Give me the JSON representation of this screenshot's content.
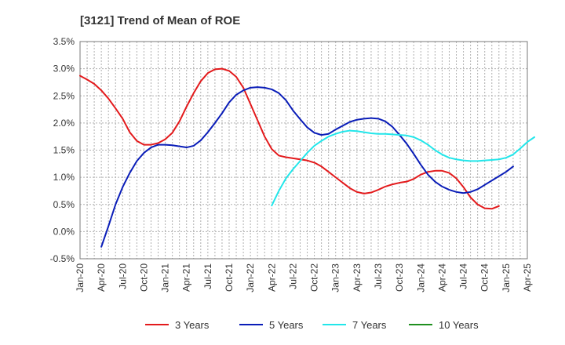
{
  "chart_data": {
    "type": "line",
    "title": "[3121]  Trend of Mean of ROE",
    "xlabel": "",
    "ylabel": "",
    "ylim": [
      -0.5,
      3.5
    ],
    "yticks": [
      -0.5,
      0.0,
      0.5,
      1.0,
      1.5,
      2.0,
      2.5,
      3.0,
      3.5
    ],
    "ytick_labels": [
      "-0.5%",
      "0.0%",
      "0.5%",
      "1.0%",
      "1.5%",
      "2.0%",
      "2.5%",
      "3.0%",
      "3.5%"
    ],
    "xticks": [
      "Jan-20",
      "Apr-20",
      "Jul-20",
      "Oct-20",
      "Jan-21",
      "Apr-21",
      "Jul-21",
      "Oct-21",
      "Jan-22",
      "Apr-22",
      "Jul-22",
      "Oct-22",
      "Jan-23",
      "Apr-23",
      "Jul-23",
      "Oct-23",
      "Jan-24",
      "Apr-24",
      "Jul-24",
      "Oct-24",
      "Jan-25",
      "Apr-25"
    ],
    "grid": true,
    "legend_position": "bottom",
    "series": [
      {
        "name": "3 Years",
        "color": "#e31a1c",
        "points": [
          [
            0,
            2.87
          ],
          [
            1,
            2.8
          ],
          [
            2,
            2.72
          ],
          [
            3,
            2.6
          ],
          [
            4,
            2.45
          ],
          [
            5,
            2.27
          ],
          [
            6,
            2.08
          ],
          [
            7,
            1.83
          ],
          [
            8,
            1.67
          ],
          [
            9,
            1.6
          ],
          [
            10,
            1.6
          ],
          [
            11,
            1.63
          ],
          [
            12,
            1.7
          ],
          [
            13,
            1.82
          ],
          [
            14,
            2.03
          ],
          [
            15,
            2.3
          ],
          [
            16,
            2.55
          ],
          [
            17,
            2.77
          ],
          [
            18,
            2.92
          ],
          [
            19,
            2.99
          ],
          [
            20,
            3.0
          ],
          [
            21,
            2.96
          ],
          [
            22,
            2.85
          ],
          [
            23,
            2.65
          ],
          [
            24,
            2.35
          ],
          [
            25,
            2.05
          ],
          [
            26,
            1.75
          ],
          [
            27,
            1.52
          ],
          [
            28,
            1.4
          ],
          [
            29,
            1.37
          ],
          [
            30,
            1.35
          ],
          [
            31,
            1.33
          ],
          [
            32,
            1.31
          ],
          [
            33,
            1.27
          ],
          [
            34,
            1.2
          ],
          [
            35,
            1.1
          ],
          [
            36,
            1.0
          ],
          [
            37,
            0.9
          ],
          [
            38,
            0.8
          ],
          [
            39,
            0.73
          ],
          [
            40,
            0.7
          ],
          [
            41,
            0.72
          ],
          [
            42,
            0.77
          ],
          [
            43,
            0.83
          ],
          [
            44,
            0.87
          ],
          [
            45,
            0.9
          ],
          [
            46,
            0.92
          ],
          [
            47,
            0.97
          ],
          [
            48,
            1.05
          ],
          [
            49,
            1.1
          ],
          [
            50,
            1.12
          ],
          [
            51,
            1.12
          ],
          [
            52,
            1.08
          ],
          [
            53,
            0.98
          ],
          [
            54,
            0.82
          ],
          [
            55,
            0.63
          ],
          [
            56,
            0.5
          ],
          [
            57,
            0.43
          ],
          [
            58,
            0.42
          ],
          [
            59,
            0.47
          ]
        ]
      },
      {
        "name": "5 Years",
        "color": "#0a1db8",
        "points": [
          [
            3,
            -0.28
          ],
          [
            4,
            0.1
          ],
          [
            5,
            0.5
          ],
          [
            6,
            0.82
          ],
          [
            7,
            1.08
          ],
          [
            8,
            1.3
          ],
          [
            9,
            1.45
          ],
          [
            10,
            1.55
          ],
          [
            11,
            1.6
          ],
          [
            12,
            1.6
          ],
          [
            13,
            1.59
          ],
          [
            14,
            1.57
          ],
          [
            15,
            1.55
          ],
          [
            16,
            1.58
          ],
          [
            17,
            1.68
          ],
          [
            18,
            1.83
          ],
          [
            19,
            2.0
          ],
          [
            20,
            2.18
          ],
          [
            21,
            2.38
          ],
          [
            22,
            2.52
          ],
          [
            23,
            2.6
          ],
          [
            24,
            2.65
          ],
          [
            25,
            2.66
          ],
          [
            26,
            2.65
          ],
          [
            27,
            2.62
          ],
          [
            28,
            2.55
          ],
          [
            29,
            2.42
          ],
          [
            30,
            2.23
          ],
          [
            31,
            2.07
          ],
          [
            32,
            1.92
          ],
          [
            33,
            1.82
          ],
          [
            34,
            1.78
          ],
          [
            35,
            1.8
          ],
          [
            36,
            1.88
          ],
          [
            37,
            1.95
          ],
          [
            38,
            2.02
          ],
          [
            39,
            2.06
          ],
          [
            40,
            2.08
          ],
          [
            41,
            2.09
          ],
          [
            42,
            2.08
          ],
          [
            43,
            2.03
          ],
          [
            44,
            1.93
          ],
          [
            45,
            1.78
          ],
          [
            46,
            1.62
          ],
          [
            47,
            1.43
          ],
          [
            48,
            1.23
          ],
          [
            49,
            1.05
          ],
          [
            50,
            0.92
          ],
          [
            51,
            0.83
          ],
          [
            52,
            0.77
          ],
          [
            53,
            0.73
          ],
          [
            54,
            0.71
          ],
          [
            55,
            0.73
          ],
          [
            56,
            0.78
          ],
          [
            57,
            0.86
          ],
          [
            58,
            0.94
          ],
          [
            59,
            1.02
          ],
          [
            60,
            1.1
          ],
          [
            61,
            1.2
          ]
        ]
      },
      {
        "name": "7 Years",
        "color": "#22e6ea",
        "points": [
          [
            27,
            0.48
          ],
          [
            28,
            0.75
          ],
          [
            29,
            0.98
          ],
          [
            30,
            1.15
          ],
          [
            31,
            1.3
          ],
          [
            32,
            1.45
          ],
          [
            33,
            1.58
          ],
          [
            34,
            1.67
          ],
          [
            35,
            1.75
          ],
          [
            36,
            1.8
          ],
          [
            37,
            1.84
          ],
          [
            38,
            1.86
          ],
          [
            39,
            1.85
          ],
          [
            40,
            1.83
          ],
          [
            41,
            1.81
          ],
          [
            42,
            1.8
          ],
          [
            43,
            1.8
          ],
          [
            44,
            1.79
          ],
          [
            45,
            1.78
          ],
          [
            46,
            1.77
          ],
          [
            47,
            1.74
          ],
          [
            48,
            1.68
          ],
          [
            49,
            1.6
          ],
          [
            50,
            1.5
          ],
          [
            51,
            1.42
          ],
          [
            52,
            1.36
          ],
          [
            53,
            1.33
          ],
          [
            54,
            1.31
          ],
          [
            55,
            1.3
          ],
          [
            56,
            1.3
          ],
          [
            57,
            1.31
          ],
          [
            58,
            1.32
          ],
          [
            59,
            1.33
          ],
          [
            60,
            1.36
          ],
          [
            61,
            1.42
          ],
          [
            62,
            1.53
          ],
          [
            63,
            1.65
          ],
          [
            64,
            1.74
          ]
        ]
      },
      {
        "name": "10 Years",
        "color": "#1f8f1f",
        "points": []
      }
    ]
  }
}
